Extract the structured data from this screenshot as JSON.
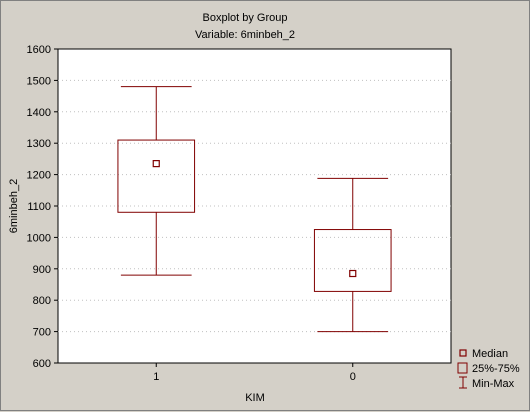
{
  "chart_data": {
    "type": "boxplot",
    "title": "Boxplot by Group",
    "subtitle": "Variable: 6minbeh_2",
    "xlabel": "KIM",
    "ylabel": "6minbeh_2",
    "ylim": [
      600,
      1600
    ],
    "yticks": [
      600,
      700,
      800,
      900,
      1000,
      1100,
      1200,
      1300,
      1400,
      1500,
      1600
    ],
    "categories": [
      "1",
      "0"
    ],
    "boxes": [
      {
        "category": "1",
        "min": 880,
        "q1": 1080,
        "median": 1235,
        "q3": 1310,
        "max": 1480
      },
      {
        "category": "0",
        "min": 700,
        "q1": 828,
        "median": 885,
        "q3": 1025,
        "max": 1188
      }
    ],
    "legend": {
      "position": "bottom-right",
      "items": [
        "Median",
        "25%-75%",
        "Min-Max"
      ]
    },
    "colors": {
      "box": "#800000",
      "plot_background": "#ffffff",
      "page_background": "#d4d0c8"
    }
  }
}
